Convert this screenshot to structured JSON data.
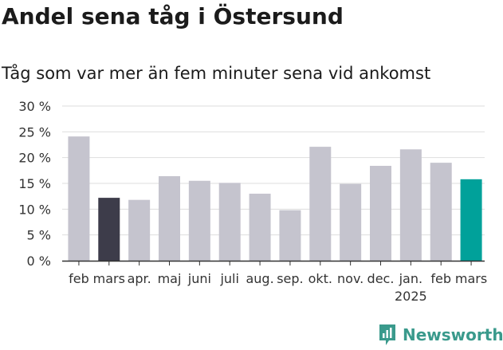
{
  "title": "Andel sena tåg i Östersund",
  "subtitle": "Tåg som var mer än fem minuter sena vid ankomst",
  "brand": "Newsworthy",
  "chart_data": {
    "type": "bar",
    "categories": [
      "feb",
      "mars",
      "apr.",
      "maj",
      "juni",
      "juli",
      "aug.",
      "sep.",
      "okt.",
      "nov.",
      "dec.",
      "jan.",
      "feb",
      "mars"
    ],
    "year_labels": [
      {
        "index": 11,
        "label": "2025"
      }
    ],
    "values": [
      24.1,
      12.2,
      11.8,
      16.4,
      15.5,
      15.1,
      13.0,
      9.8,
      22.1,
      14.9,
      18.4,
      21.6,
      19.0,
      15.8
    ],
    "bar_colors": [
      "#c5c4ce",
      "#3d3c4a",
      "#c5c4ce",
      "#c5c4ce",
      "#c5c4ce",
      "#c5c4ce",
      "#c5c4ce",
      "#c5c4ce",
      "#c5c4ce",
      "#c5c4ce",
      "#c5c4ce",
      "#c5c4ce",
      "#c5c4ce",
      "#00a19a"
    ],
    "ylim": [
      0,
      30
    ],
    "yticks": [
      {
        "value": 0,
        "label": "0 %"
      },
      {
        "value": 5,
        "label": "5 %"
      },
      {
        "value": 10,
        "label": "10 %"
      },
      {
        "value": 15,
        "label": "15 %"
      },
      {
        "value": 20,
        "label": "20 %"
      },
      {
        "value": 25,
        "label": "25 %"
      },
      {
        "value": 30,
        "label": "30 %"
      }
    ],
    "grid": true,
    "xlabel": "",
    "ylabel": ""
  }
}
